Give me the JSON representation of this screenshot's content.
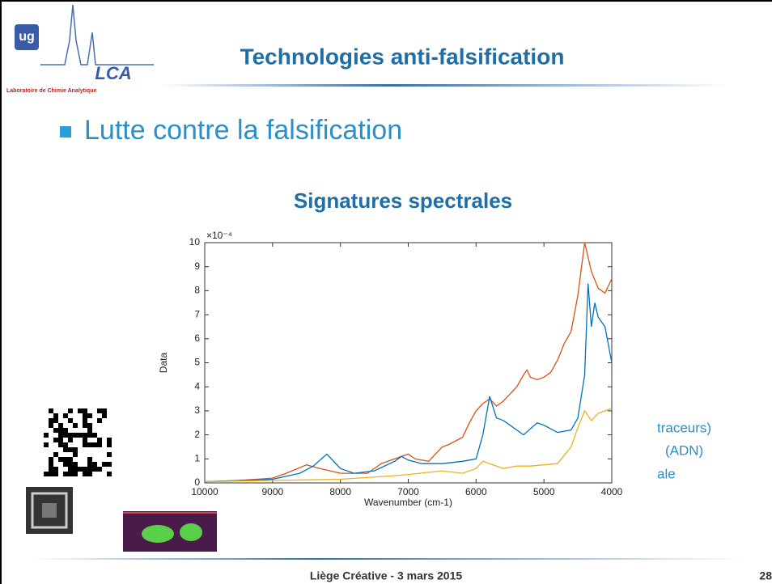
{
  "slide": {
    "title": "Technologies anti-falsification",
    "bullet": "Lutte contre la falsification",
    "logo": {
      "short": "ug",
      "lab": "LCA",
      "caption": "Laboratoire de Chimie Analytique"
    },
    "hidden_list": [
      "traceurs)",
      "(ADN)",
      "ale"
    ],
    "footer": "Liège Créative - 3 mars 2015",
    "page": "28"
  },
  "chart_data": {
    "type": "line",
    "title": "Signatures spectrales",
    "x_label": "Wavenumber (cm-1)",
    "y_label": "Data",
    "y_scale_label": "×10⁻⁴",
    "xlim": [
      10000,
      4000
    ],
    "ylim": [
      0,
      10
    ],
    "xticks": [
      10000,
      9000,
      8000,
      7000,
      6000,
      5000,
      4000
    ],
    "yticks": [
      0,
      1,
      2,
      3,
      4,
      5,
      6,
      7,
      8,
      9,
      10
    ],
    "series": [
      {
        "color": "#d95319",
        "x": [
          10000,
          9500,
          9000,
          8800,
          8500,
          8300,
          8000,
          7600,
          7400,
          7100,
          7000,
          6900,
          6700,
          6500,
          6400,
          6200,
          6100,
          6000,
          5900,
          5800,
          5700,
          5600,
          5500,
          5400,
          5300,
          5250,
          5200,
          5100,
          5000,
          4900,
          4800,
          4700,
          4600,
          4500,
          4400,
          4300,
          4200,
          4100,
          4000
        ],
        "values": [
          0.05,
          0.1,
          0.2,
          0.4,
          0.75,
          0.6,
          0.4,
          0.4,
          0.8,
          1.1,
          1.2,
          1.0,
          0.9,
          1.5,
          1.6,
          1.9,
          2.5,
          3.0,
          3.3,
          3.5,
          3.2,
          3.4,
          3.7,
          4.0,
          4.5,
          4.7,
          4.4,
          4.3,
          4.4,
          4.6,
          5.1,
          5.8,
          6.3,
          7.8,
          10,
          8.8,
          8.1,
          7.9,
          8.5
        ]
      },
      {
        "color": "#0072bd",
        "x": [
          10000,
          9500,
          9000,
          8600,
          8400,
          8200,
          8100,
          8000,
          7800,
          7500,
          7200,
          7100,
          7000,
          6800,
          6500,
          6200,
          6000,
          5900,
          5800,
          5700,
          5600,
          5500,
          5300,
          5100,
          5000,
          4800,
          4600,
          4500,
          4400,
          4350,
          4300,
          4250,
          4200,
          4100,
          4000
        ],
        "values": [
          0.05,
          0.1,
          0.15,
          0.4,
          0.7,
          1.2,
          0.9,
          0.6,
          0.4,
          0.5,
          0.9,
          1.1,
          0.95,
          0.8,
          0.8,
          0.9,
          1.0,
          2.0,
          3.6,
          2.7,
          2.6,
          2.4,
          2.0,
          2.5,
          2.4,
          2.1,
          2.2,
          2.7,
          4.5,
          8.3,
          6.5,
          7.5,
          6.9,
          6.5,
          5.0
        ]
      },
      {
        "color": "#edb120",
        "x": [
          10000,
          9000,
          8000,
          7200,
          7000,
          6500,
          6200,
          6000,
          5900,
          5800,
          5600,
          5400,
          5200,
          5000,
          4800,
          4600,
          4500,
          4400,
          4300,
          4200,
          4100,
          4000
        ],
        "values": [
          0.05,
          0.1,
          0.15,
          0.3,
          0.35,
          0.5,
          0.4,
          0.6,
          0.9,
          0.8,
          0.6,
          0.7,
          0.7,
          0.75,
          0.8,
          1.5,
          2.3,
          3.0,
          2.6,
          2.9,
          3.0,
          3.1
        ]
      }
    ]
  }
}
